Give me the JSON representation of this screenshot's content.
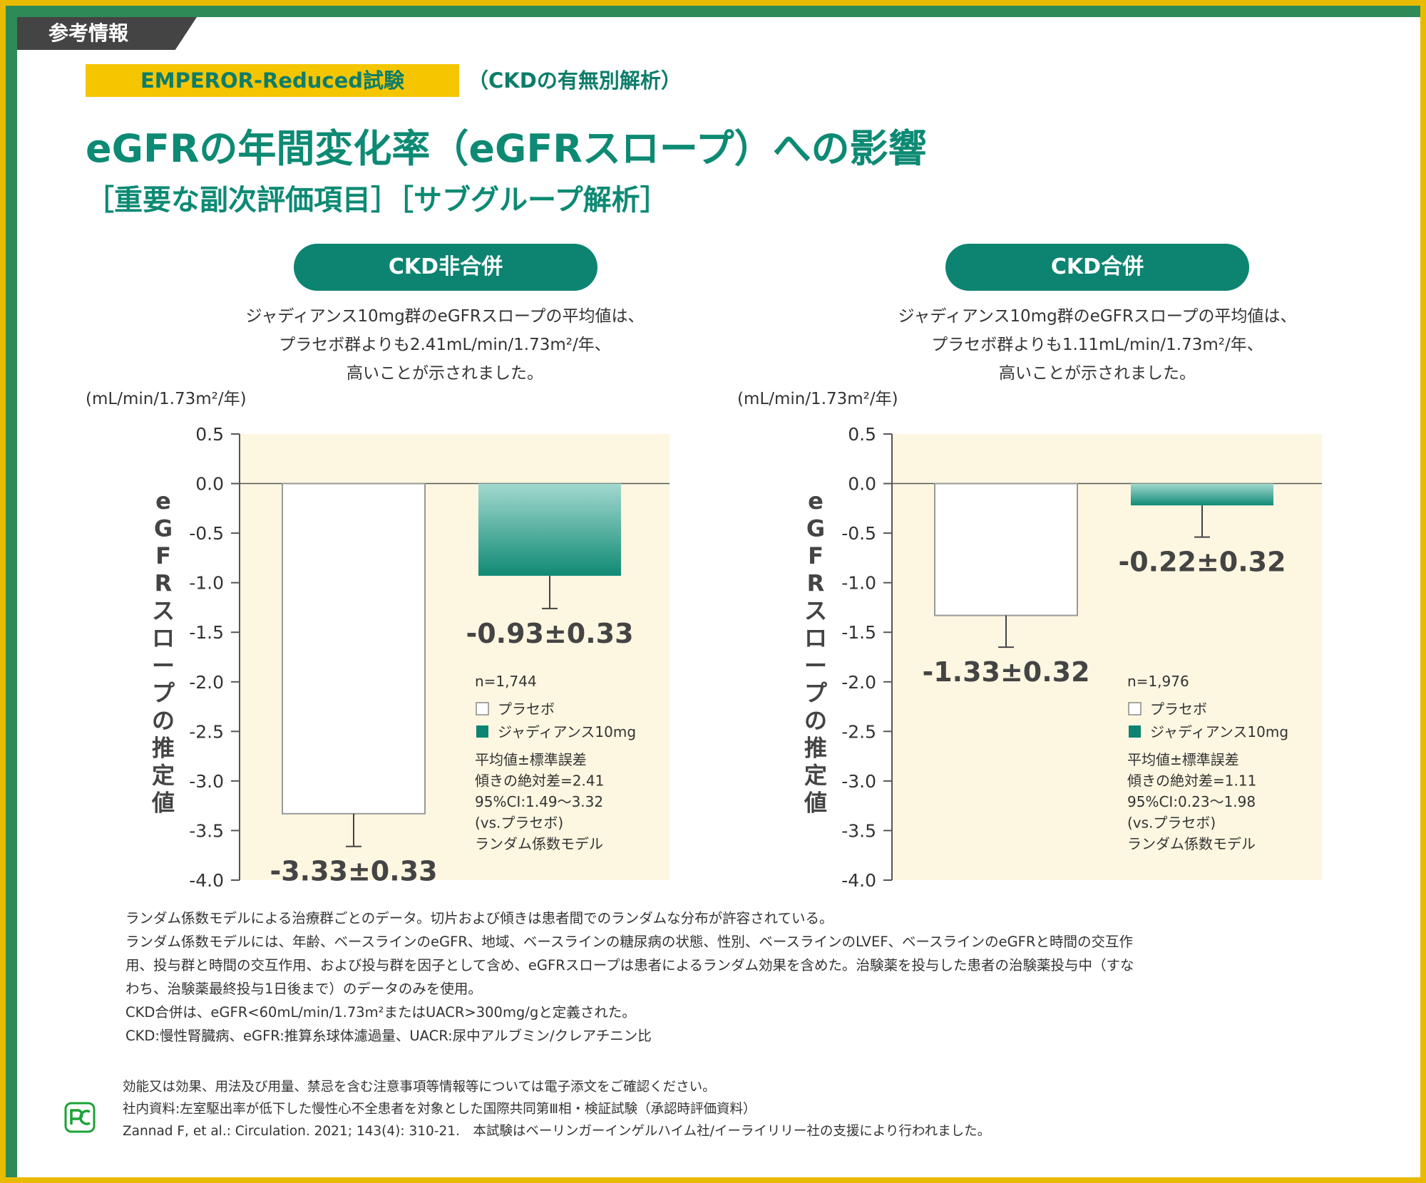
{
  "header": {
    "badge": "参考情報",
    "trial_name": "EMPEROR-Reduced試験",
    "trial_sub": "（CKDの有無別解析）",
    "title": "eGFRの年間変化率（eGFRスロープ）への影響",
    "subtitle": "［重要な副次評価項目］［サブグループ解析］"
  },
  "colors": {
    "accent": "#0d8a74",
    "pill": "#0c8471",
    "trial_badge": "#f5c500",
    "plot_bg": "#fdf6e1",
    "frame_green": "#2e8a57",
    "frame_yellow": "#e9bb00"
  },
  "panels": [
    {
      "pill": "CKD非合併",
      "desc": [
        "ジャディアンス10mg群のeGFRスロープの平均値は、",
        "プラセボ群よりも2.41mL/min/1.73m²/年、",
        "高いことが示されました。"
      ],
      "unit": "(mL/min/1.73m²/年)",
      "n": "n=1,744",
      "stats": [
        "平均値±標準誤差",
        "傾きの絶対差=2.41",
        "95%CI:1.49〜3.32",
        "(vs.プラセボ)",
        "ランダム係数モデル"
      ]
    },
    {
      "pill": "CKD合併",
      "desc": [
        "ジャディアンス10mg群のeGFRスロープの平均値は、",
        "プラセボ群よりも1.11mL/min/1.73m²/年、",
        "高いことが示されました。"
      ],
      "unit": "(mL/min/1.73m²/年)",
      "n": "n=1,976",
      "stats": [
        "平均値±標準誤差",
        "傾きの絶対差=1.11",
        "95%CI:0.23〜1.98",
        "(vs.プラセボ)",
        "ランダム係数モデル"
      ]
    }
  ],
  "chart_data": [
    {
      "type": "bar",
      "categories": [
        "プラセボ",
        "ジャディアンス10mg"
      ],
      "values": [
        -3.33,
        -0.93
      ],
      "errors": [
        0.33,
        0.33
      ],
      "value_labels": [
        "-3.33±0.33",
        "-0.93±0.33"
      ],
      "ylabel": "eGFRスロープの推定値",
      "ylim": [
        -4.0,
        0.5
      ],
      "yticks": [
        "0.5",
        "0.0",
        "-0.5",
        "-1.0",
        "-1.5",
        "-2.0",
        "-2.5",
        "-3.0",
        "-3.5",
        "-4.0"
      ],
      "legend": [
        "プラセボ",
        "ジャディアンス10mg"
      ]
    },
    {
      "type": "bar",
      "categories": [
        "プラセボ",
        "ジャディアンス10mg"
      ],
      "values": [
        -1.33,
        -0.22
      ],
      "errors": [
        0.32,
        0.32
      ],
      "value_labels": [
        "-1.33±0.32",
        "-0.22±0.32"
      ],
      "ylabel": "eGFRスロープの推定値",
      "ylim": [
        -4.0,
        0.5
      ],
      "yticks": [
        "0.5",
        "0.0",
        "-0.5",
        "-1.0",
        "-1.5",
        "-2.0",
        "-2.5",
        "-3.0",
        "-3.5",
        "-4.0"
      ],
      "legend": [
        "プラセボ",
        "ジャディアンス10mg"
      ]
    }
  ],
  "notes": [
    "ランダム係数モデルによる治療群ごとのデータ。切片および傾きは患者間でのランダムな分布が許容されている。",
    "ランダム係数モデルには、年齢、ベースラインのeGFR、地域、ベースラインの糖尿病の状態、性別、ベースラインのLVEF、ベースラインのeGFRと時間の交互作",
    "用、投与群と時間の交互作用、および投与群を因子として含め、eGFRスロープは患者によるランダム効果を含めた。治験薬を投与した患者の治験薬投与中（すな",
    "わち、治験薬最終投与1日後まで）のデータのみを使用。",
    "CKD合併は、eGFR<60mL/min/1.73m²またはUACR>300mg/gと定義された。",
    "CKD:慢性腎臓病、eGFR:推算糸球体濾過量、UACR:尿中アルブミン/クレアチニン比"
  ],
  "refs": [
    "効能又は効果、用法及び用量、禁忌を含む注意事項等情報等については電子添文をご確認ください。",
    "社内資料:左室駆出率が低下した慢性心不全患者を対象とした国際共同第Ⅲ相・検証試験（承認時評価資料）",
    "Zannad F, et al.: Circulation. 2021; 143(4): 310-21.　本試験はベーリンガーインゲルハイム社/イーライリリー社の支援により行われました。"
  ],
  "pc_icon": {
    "label": "PC",
    "name": "pc-icon"
  }
}
